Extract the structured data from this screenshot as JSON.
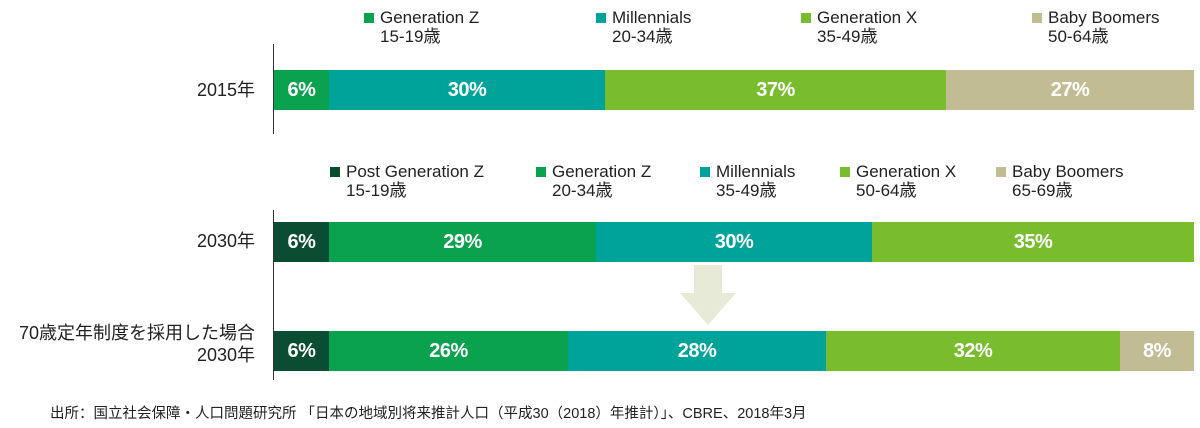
{
  "colors": {
    "post_gen_z": "#0b4d32",
    "gen_z": "#0aa24e",
    "millennials": "#00a39a",
    "gen_x": "#79bd2e",
    "baby_boomers": "#c2bc94",
    "arrow": "#e8ead8"
  },
  "chart_data": {
    "type": "bar",
    "orientation": "horizontal",
    "stacked": true,
    "unit": "%",
    "rows": [
      {
        "label": "2015年",
        "legend": [
          {
            "name": "Generation Z",
            "range": "15-19歳"
          },
          {
            "name": "Millennials",
            "range": "20-34歳"
          },
          {
            "name": "Generation X",
            "range": "35-49歳"
          },
          {
            "name": "Baby Boomers",
            "range": "50-64歳"
          }
        ],
        "segments": [
          {
            "series": "gen_z",
            "value": 6,
            "label": "6%"
          },
          {
            "series": "millennials",
            "value": 30,
            "label": "30%"
          },
          {
            "series": "gen_x",
            "value": 37,
            "label": "37%"
          },
          {
            "series": "baby_boomers",
            "value": 27,
            "label": "27%"
          }
        ]
      },
      {
        "label": "2030年",
        "legend": [
          {
            "name": "Post Generation Z",
            "range": "15-19歳"
          },
          {
            "name": "Generation Z",
            "range": "20-34歳"
          },
          {
            "name": "Millennials",
            "range": "35-49歳"
          },
          {
            "name": "Generation X",
            "range": "50-64歳"
          },
          {
            "name": "Baby Boomers",
            "range": "65-69歳"
          }
        ],
        "segments": [
          {
            "series": "post_gen_z",
            "value": 6,
            "label": "6%"
          },
          {
            "series": "gen_z",
            "value": 29,
            "label": "29%"
          },
          {
            "series": "millennials",
            "value": 30,
            "label": "30%"
          },
          {
            "series": "gen_x",
            "value": 35,
            "label": "35%"
          }
        ]
      },
      {
        "label_line1": "70歳定年制度を採用した場合",
        "label_line2": "2030年",
        "segments": [
          {
            "series": "post_gen_z",
            "value": 6,
            "label": "6%"
          },
          {
            "series": "gen_z",
            "value": 26,
            "label": "26%"
          },
          {
            "series": "millennials",
            "value": 28,
            "label": "28%"
          },
          {
            "series": "gen_x",
            "value": 32,
            "label": "32%"
          },
          {
            "series": "baby_boomers",
            "value": 8,
            "label": "8%"
          }
        ]
      }
    ]
  },
  "source": "出所：国立社会保障・人口問題研究所 「日本の地域別将来推計人口（平成30（2018）年推計）」、CBRE、2018年3月"
}
